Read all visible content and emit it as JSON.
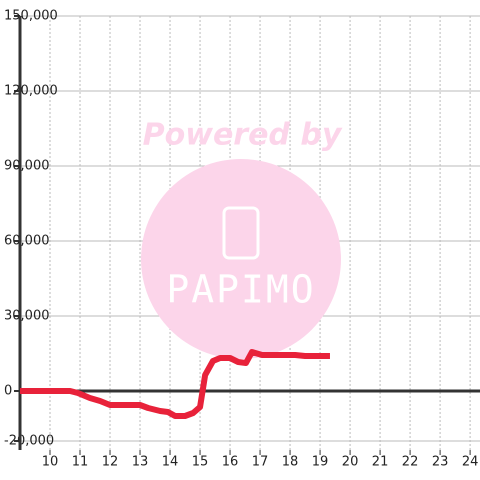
{
  "chart_data": {
    "type": "line",
    "watermark": {
      "line1": "Powered by",
      "line2": "PAPIMO"
    },
    "x": [
      9.0,
      10.67,
      10.93,
      11.33,
      11.67,
      12.0,
      13.0,
      13.27,
      13.67,
      13.93,
      14.17,
      14.5,
      14.77,
      15.0,
      15.17,
      15.43,
      15.67,
      16.0,
      16.27,
      16.53,
      16.73,
      17.07,
      18.17,
      18.5,
      19.33
    ],
    "series": [
      {
        "color": "#e8223a",
        "values": [
          0,
          0,
          -800,
          -2800,
          -4000,
          -5600,
          -5600,
          -6800,
          -8000,
          -8400,
          -10000,
          -10000,
          -8800,
          -6400,
          6400,
          12000,
          13200,
          13200,
          11600,
          11200,
          15600,
          14400,
          14400,
          14000,
          14000
        ]
      }
    ],
    "xlim": [
      9,
      24.33
    ],
    "xticks": [
      10,
      11,
      12,
      13,
      14,
      15,
      16,
      17,
      18,
      19,
      20,
      21,
      22,
      23,
      24
    ],
    "ylim": [
      -23600,
      150000
    ],
    "yticks": [
      {
        "value": -20000,
        "label": "-20,000"
      },
      0,
      {
        "value": 30000,
        "label": "30,000"
      },
      {
        "value": 60000,
        "label": "60,000"
      },
      {
        "value": 90000,
        "label": "90,000"
      },
      {
        "value": 120000,
        "label": "120,000"
      },
      {
        "value": 150000,
        "label": "150,000"
      }
    ],
    "grid": true
  }
}
